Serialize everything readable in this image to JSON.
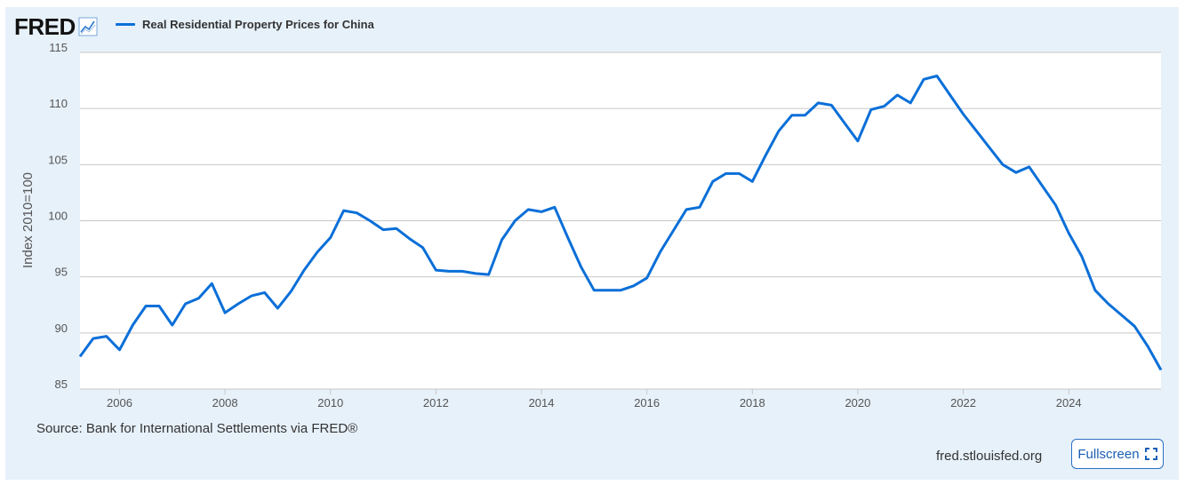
{
  "header": {
    "logo_text": "FRED",
    "logo_icon": "line-chart-icon",
    "legend_label": "Real Residential Property Prices for China"
  },
  "footer": {
    "source": "Source: Bank for International Settlements via FRED®",
    "site": "fred.stlouisfed.org",
    "fullscreen_label": "Fullscreen",
    "fullscreen_icon": "expand-corners-icon"
  },
  "colors": {
    "series": "#0a6fd8",
    "frame_background": "#e7f1fa",
    "plot_background": "#ffffff",
    "gridline": "#c7c7c7"
  },
  "chart_data": {
    "type": "line",
    "title": "",
    "xlabel": "",
    "ylabel": "Index 2010=100",
    "xlim": [
      "2005-04-01",
      "2025-10-01"
    ],
    "ylim": [
      85,
      115
    ],
    "yticks": [
      85,
      90,
      95,
      100,
      105,
      110,
      115
    ],
    "xtick_labels": [
      "2006",
      "2008",
      "2010",
      "2012",
      "2014",
      "2016",
      "2018",
      "2020",
      "2022",
      "2024"
    ],
    "grid": "horizontal",
    "legend_position": "top-left",
    "series": [
      {
        "name": "Real Residential Property Prices for China",
        "x": [
          "2005-04-01",
          "2005-07-01",
          "2005-10-01",
          "2006-01-01",
          "2006-04-01",
          "2006-07-01",
          "2006-10-01",
          "2007-01-01",
          "2007-04-01",
          "2007-07-01",
          "2007-10-01",
          "2008-01-01",
          "2008-04-01",
          "2008-07-01",
          "2008-10-01",
          "2009-01-01",
          "2009-04-01",
          "2009-07-01",
          "2009-10-01",
          "2010-01-01",
          "2010-04-01",
          "2010-07-01",
          "2010-10-01",
          "2011-01-01",
          "2011-04-01",
          "2011-07-01",
          "2011-10-01",
          "2012-01-01",
          "2012-04-01",
          "2012-07-01",
          "2012-10-01",
          "2013-01-01",
          "2013-04-01",
          "2013-07-01",
          "2013-10-01",
          "2014-01-01",
          "2014-04-01",
          "2014-07-01",
          "2014-10-01",
          "2015-01-01",
          "2015-04-01",
          "2015-07-01",
          "2015-10-01",
          "2016-01-01",
          "2016-04-01",
          "2016-07-01",
          "2016-10-01",
          "2017-01-01",
          "2017-04-01",
          "2017-07-01",
          "2017-10-01",
          "2018-01-01",
          "2018-04-01",
          "2018-07-01",
          "2018-10-01",
          "2019-01-01",
          "2019-04-01",
          "2019-07-01",
          "2019-10-01",
          "2020-01-01",
          "2020-04-01",
          "2020-07-01",
          "2020-10-01",
          "2021-01-01",
          "2021-04-01",
          "2021-07-01",
          "2021-10-01",
          "2022-01-01",
          "2022-04-01",
          "2022-07-01",
          "2022-10-01",
          "2023-01-01",
          "2023-04-01",
          "2023-07-01",
          "2023-10-01",
          "2024-01-01",
          "2024-04-01",
          "2024-07-01",
          "2024-10-01",
          "2025-01-01",
          "2025-04-01",
          "2025-07-01",
          "2025-10-01"
        ],
        "values": [
          87.9,
          89.5,
          89.7,
          88.5,
          90.7,
          92.4,
          92.4,
          90.7,
          92.6,
          93.1,
          94.4,
          91.8,
          92.6,
          93.3,
          93.6,
          92.2,
          93.7,
          95.6,
          97.2,
          98.5,
          100.9,
          100.7,
          100.0,
          99.2,
          99.3,
          98.4,
          97.6,
          95.6,
          95.5,
          95.5,
          95.3,
          95.2,
          98.3,
          100.0,
          101.0,
          100.8,
          101.2,
          98.5,
          95.9,
          93.8,
          93.8,
          93.8,
          94.2,
          94.9,
          97.2,
          99.1,
          101.0,
          101.2,
          103.5,
          104.2,
          104.2,
          103.5,
          105.8,
          108.0,
          109.4,
          109.4,
          110.5,
          110.3,
          108.7,
          107.1,
          109.9,
          110.2,
          111.2,
          110.5,
          112.6,
          112.9,
          111.2,
          109.5,
          108.0,
          106.5,
          105.0,
          104.3,
          104.8,
          103.1,
          101.4,
          98.9,
          96.8,
          93.8,
          92.6,
          91.6,
          90.6,
          88.8,
          86.7
        ]
      }
    ]
  }
}
